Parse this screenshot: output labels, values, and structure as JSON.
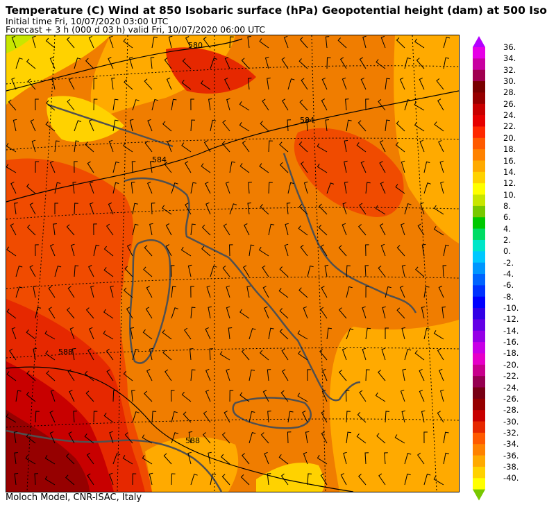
{
  "header": {
    "title": "Temperature (C) Wind  at 850 Isobaric surface (hPa) Geopotential height (dam)  at 500 Iso",
    "initial_time": "Initial time  Fri, 10/07/2020  03:00 UTC",
    "forecast": "Forecast  +   3 h  (000 d 03 h)  valid Fri, 10/07/2020 06:00 UTC"
  },
  "footer": {
    "credit": "Moloch Model, CNR-ISAC, Italy"
  },
  "map": {
    "contour_labels": [
      "580",
      "584",
      "584",
      "588",
      "588"
    ]
  },
  "legend": {
    "labels": [
      "36.",
      "34.",
      "32.",
      "30.",
      "28.",
      "26.",
      "24.",
      "22.",
      "20.",
      "18.",
      "16.",
      "14.",
      "12.",
      "10.",
      "8.",
      "6.",
      "4.",
      "2.",
      "0.",
      "-2.",
      "-4.",
      "-6.",
      "-8.",
      "-10.",
      "-12.",
      "-14.",
      "-16.",
      "-18.",
      "-20.",
      "-22.",
      "-24.",
      "-26.",
      "-28.",
      "-30.",
      "-32.",
      "-34.",
      "-36.",
      "-38.",
      "-40."
    ],
    "colors": [
      "#e600e6",
      "#c800a0",
      "#a00050",
      "#780000",
      "#960000",
      "#c80000",
      "#e60000",
      "#ff2800",
      "#ff5a00",
      "#ff8200",
      "#ffaa00",
      "#ffd200",
      "#ffff00",
      "#c8e600",
      "#78c800",
      "#00c800",
      "#00dc64",
      "#00e6c8",
      "#00c8ff",
      "#0096ff",
      "#0064ff",
      "#0032ff",
      "#0000ff",
      "#3200e6",
      "#6400e6",
      "#9600e6",
      "#c800e6",
      "#e600c8",
      "#c8008c",
      "#960050",
      "#780014",
      "#960000",
      "#c80000",
      "#e62800",
      "#ff5a00",
      "#ff8200",
      "#ffaa00",
      "#ffd200",
      "#ffff00"
    ],
    "top_arrow_color": "#b400ff",
    "bottom_arrow_color": "#78c800"
  }
}
